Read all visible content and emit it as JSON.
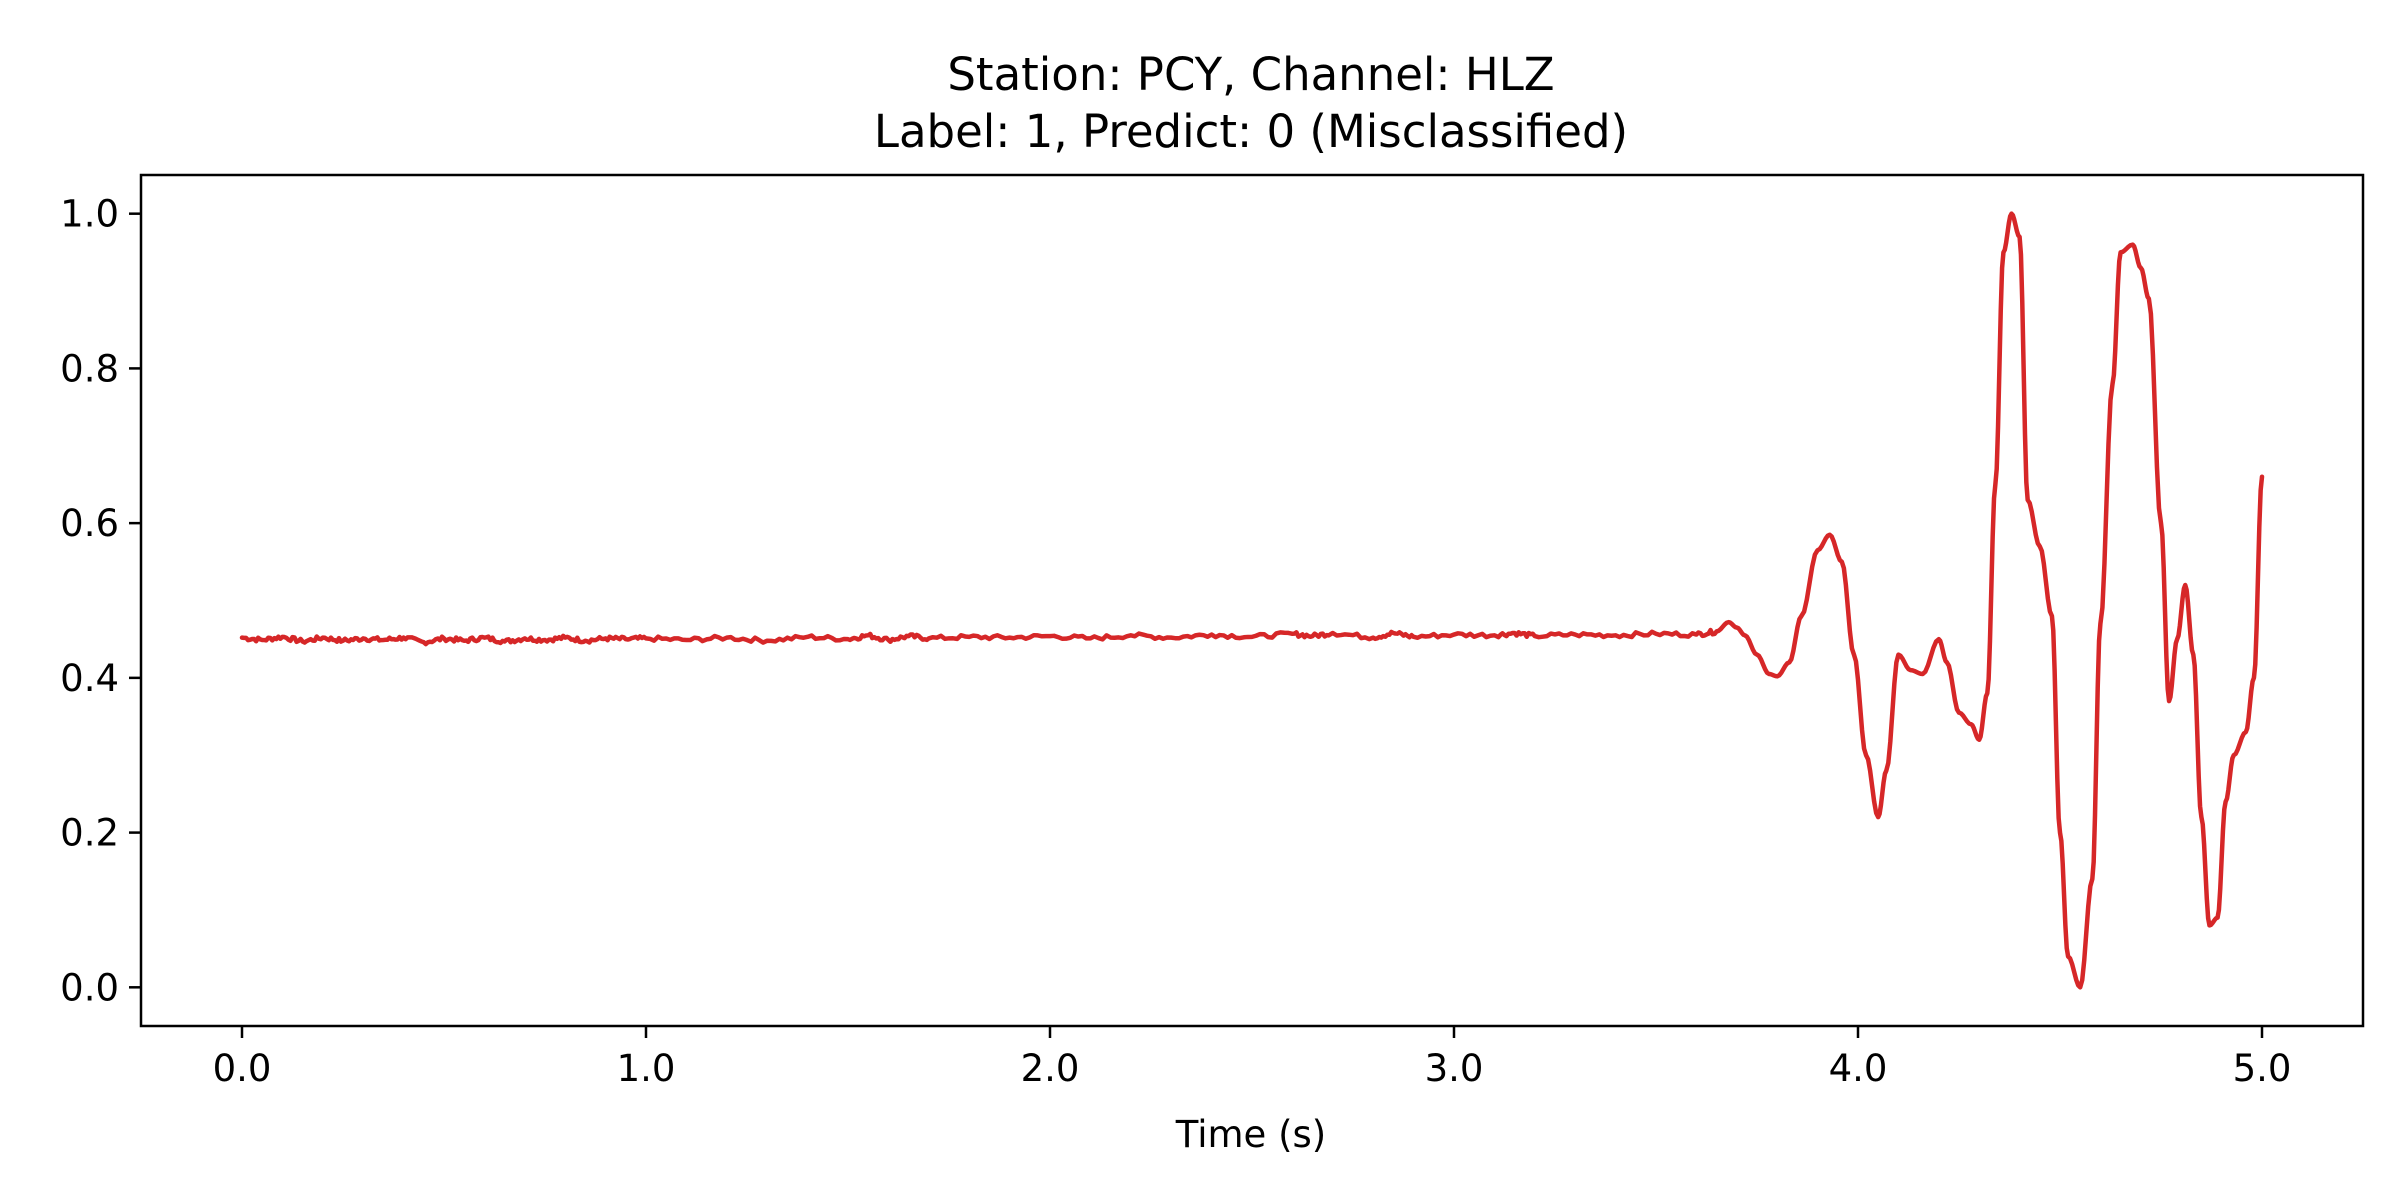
{
  "chart_data": {
    "type": "line",
    "title": "Station: PCY, Channel: HLZ",
    "subtitle": "Label: 1, Predict: 0 (Misclassified)",
    "xlabel": "Time (s)",
    "ylabel": "",
    "xlim": [
      -0.25,
      5.25
    ],
    "ylim": [
      -0.05,
      1.05
    ],
    "xticks": [
      {
        "value": 0,
        "label": "0.0"
      },
      {
        "value": 1,
        "label": "1.0"
      },
      {
        "value": 2,
        "label": "2.0"
      },
      {
        "value": 3,
        "label": "3.0"
      },
      {
        "value": 4,
        "label": "4.0"
      },
      {
        "value": 5,
        "label": "5.0"
      }
    ],
    "yticks": [
      {
        "value": 0.0,
        "label": "0.0"
      },
      {
        "value": 0.2,
        "label": "0.2"
      },
      {
        "value": 0.4,
        "label": "0.4"
      },
      {
        "value": 0.6,
        "label": "0.6"
      },
      {
        "value": 0.8,
        "label": "0.8"
      },
      {
        "value": 1.0,
        "label": "1.0"
      }
    ],
    "grid": false,
    "line_color": "#d62728",
    "series": [
      {
        "x": [
          0.0,
          0.05,
          0.1,
          0.15,
          0.2,
          0.25,
          0.3,
          0.35,
          0.4,
          0.45,
          0.5,
          0.55,
          0.6,
          0.65,
          0.7,
          0.75,
          0.8,
          0.85,
          0.9,
          0.95,
          1.0,
          1.1,
          1.2,
          1.3,
          1.4,
          1.5,
          1.55,
          1.6,
          1.65,
          1.7,
          1.8,
          1.9,
          2.0,
          2.1,
          2.2,
          2.3,
          2.4,
          2.5,
          2.6,
          2.65,
          2.7,
          2.8,
          2.85,
          2.9,
          3.0,
          3.1,
          3.15,
          3.2,
          3.3,
          3.4,
          3.5,
          3.6,
          3.65,
          3.68,
          3.7,
          3.72,
          3.75,
          3.78,
          3.8,
          3.83,
          3.86,
          3.9,
          3.93,
          3.96,
          3.99,
          4.02,
          4.05,
          4.07,
          4.1,
          4.13,
          4.16,
          4.2,
          4.22,
          4.25,
          4.28,
          4.3,
          4.32,
          4.34,
          4.36,
          4.38,
          4.4,
          4.42,
          4.45,
          4.48,
          4.5,
          4.52,
          4.55,
          4.58,
          4.6,
          4.63,
          4.65,
          4.68,
          4.7,
          4.72,
          4.75,
          4.77,
          4.79,
          4.81,
          4.83,
          4.85,
          4.87,
          4.89,
          4.91,
          4.93,
          4.96,
          4.98,
          5.0
        ],
        "y": [
          0.452,
          0.449,
          0.453,
          0.447,
          0.452,
          0.448,
          0.451,
          0.449,
          0.452,
          0.446,
          0.451,
          0.448,
          0.452,
          0.447,
          0.451,
          0.449,
          0.452,
          0.448,
          0.451,
          0.45,
          0.451,
          0.449,
          0.452,
          0.448,
          0.453,
          0.45,
          0.455,
          0.449,
          0.454,
          0.451,
          0.453,
          0.452,
          0.454,
          0.451,
          0.455,
          0.452,
          0.456,
          0.453,
          0.457,
          0.454,
          0.458,
          0.452,
          0.458,
          0.453,
          0.456,
          0.455,
          0.458,
          0.454,
          0.456,
          0.455,
          0.457,
          0.456,
          0.46,
          0.472,
          0.465,
          0.455,
          0.43,
          0.405,
          0.402,
          0.42,
          0.48,
          0.565,
          0.585,
          0.55,
          0.43,
          0.3,
          0.22,
          0.28,
          0.43,
          0.41,
          0.405,
          0.45,
          0.42,
          0.355,
          0.34,
          0.32,
          0.38,
          0.65,
          0.95,
          1.0,
          0.97,
          0.63,
          0.57,
          0.48,
          0.2,
          0.04,
          0.0,
          0.14,
          0.47,
          0.78,
          0.95,
          0.96,
          0.93,
          0.89,
          0.6,
          0.37,
          0.45,
          0.52,
          0.43,
          0.22,
          0.08,
          0.09,
          0.24,
          0.3,
          0.33,
          0.4,
          0.66
        ]
      }
    ]
  }
}
